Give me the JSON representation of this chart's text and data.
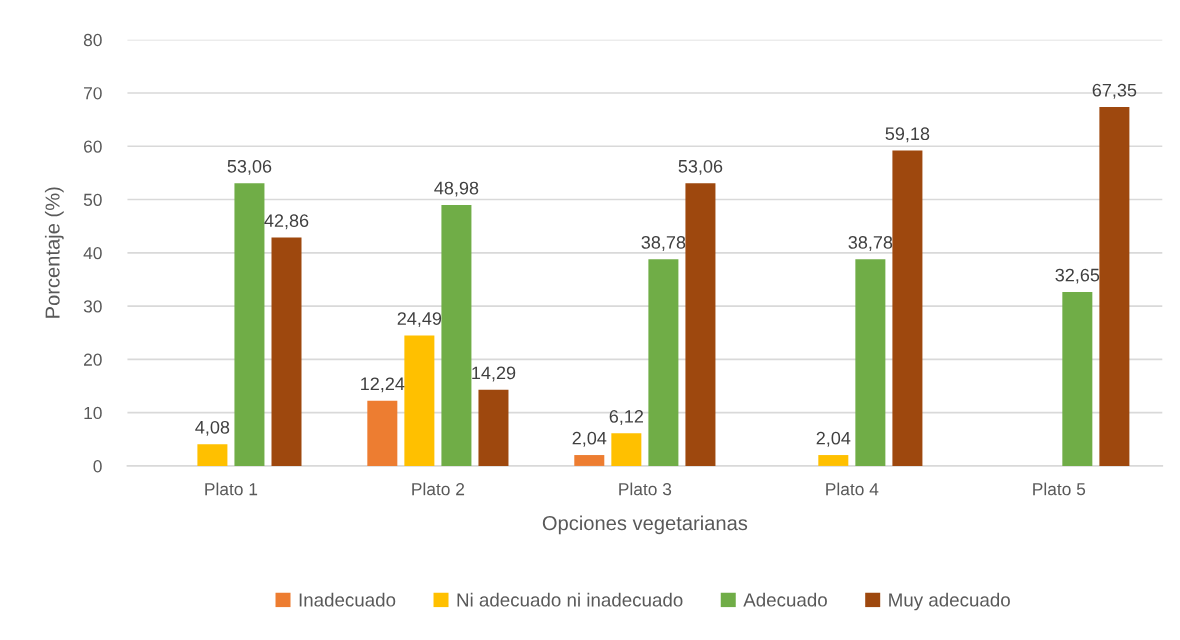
{
  "chart_data": {
    "type": "bar",
    "xlabel": "Opciones vegetarianas",
    "ylabel": "Porcentaje (%)",
    "categories": [
      "Plato 1",
      "Plato 2",
      "Plato 3",
      "Plato 4",
      "Plato 5"
    ],
    "series": [
      {
        "name": "Inadecuado",
        "color": "#ed7d31",
        "values": [
          null,
          12.24,
          2.04,
          null,
          null
        ],
        "value_labels": [
          null,
          "12,24",
          "2,04",
          null,
          null
        ]
      },
      {
        "name": "Ni adecuado ni inadecuado",
        "color": "#ffc000",
        "values": [
          4.08,
          24.49,
          6.12,
          2.04,
          null
        ],
        "value_labels": [
          "4,08",
          "24,49",
          "6,12",
          "2,04",
          null
        ]
      },
      {
        "name": "Adecuado",
        "color": "#70ad47",
        "values": [
          53.06,
          48.98,
          38.78,
          38.78,
          32.65
        ],
        "value_labels": [
          "53,06",
          "48,98",
          "38,78",
          "38,78",
          "32,65"
        ]
      },
      {
        "name": "Muy adecuado",
        "color": "#9e480e",
        "values": [
          42.86,
          14.29,
          53.06,
          59.18,
          67.35
        ],
        "value_labels": [
          "42,86",
          "14,29",
          "53,06",
          "59,18",
          "67,35"
        ]
      }
    ],
    "ylim": [
      0,
      80
    ],
    "yticks": [
      0,
      10,
      20,
      30,
      40,
      50,
      60,
      70,
      80
    ],
    "grid": "y",
    "legend": "bottom"
  }
}
